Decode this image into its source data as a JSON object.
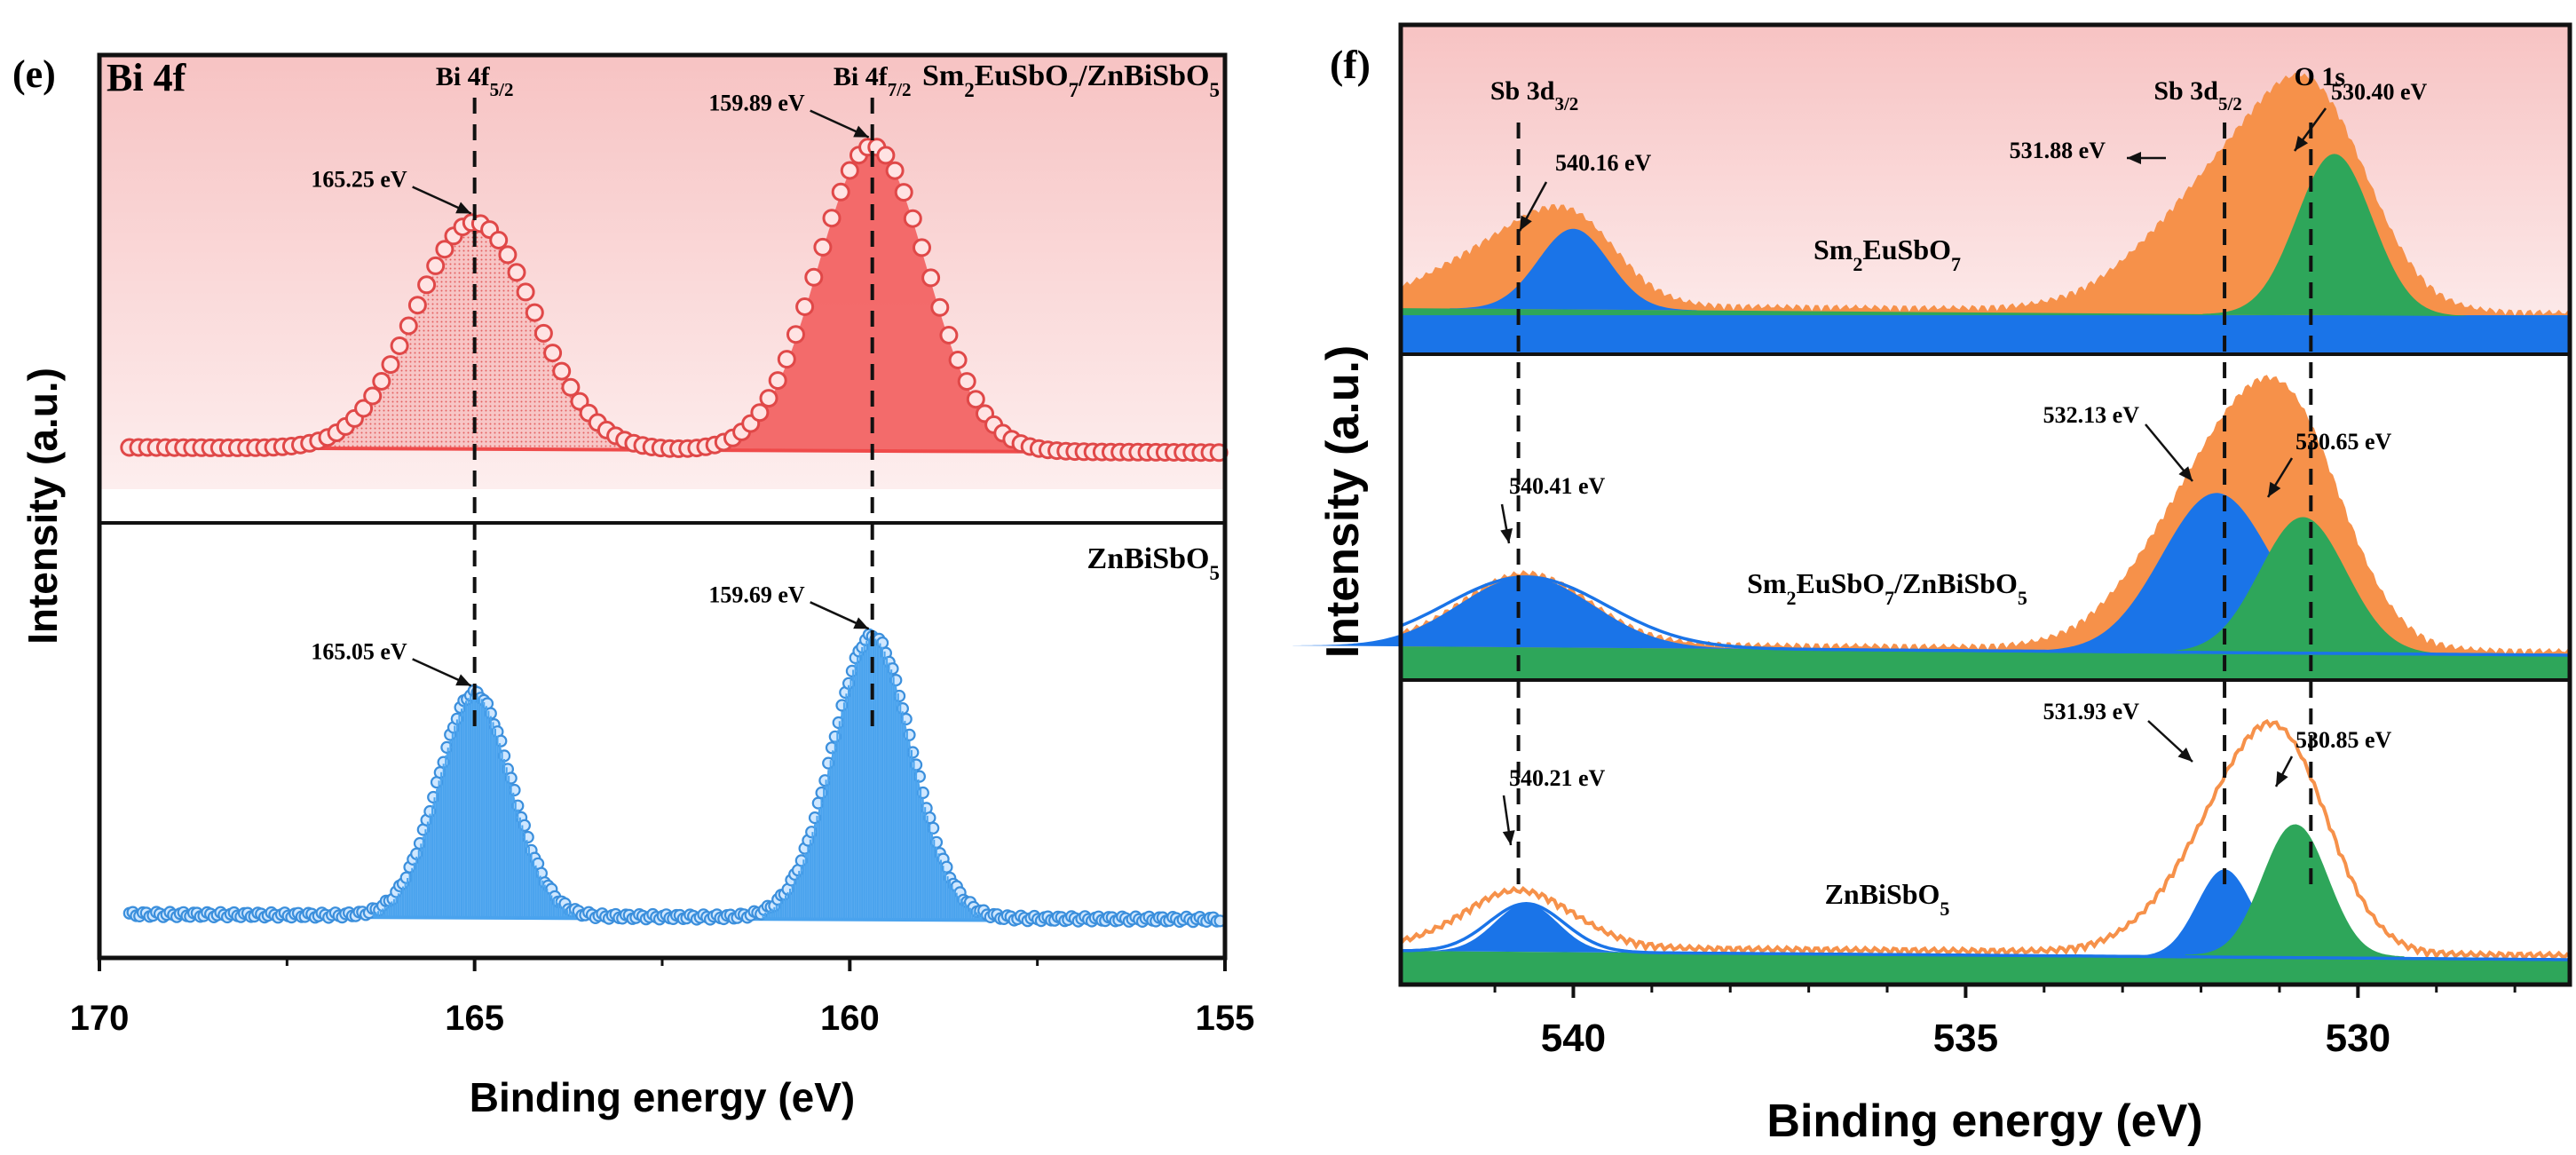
{
  "figure": {
    "panel_e_tag": "(e)",
    "panel_f_tag": "(f)"
  },
  "colors": {
    "red_line": "#ef4a4a",
    "red_fill": "#f26464",
    "red_region_fill": "#f5b7b7",
    "red_bg_top": "#f7c9c9",
    "red_bg_bottom": "#fdecec",
    "blue": "#4aa3ee",
    "blue_fill": "#1a74e8",
    "orange": "#f6914a",
    "green": "#2ea65a",
    "frame": "#111111"
  },
  "chart_data": [
    {
      "id": "e",
      "type": "line",
      "title": "Bi 4f",
      "xlabel": "Binding energy (eV)",
      "ylabel": "Intensity (a.u.)",
      "xlim": [
        170,
        155
      ],
      "x_ticks": [
        170,
        165,
        160,
        155
      ],
      "x_tick_labels": [
        "170",
        "165",
        "160",
        "155"
      ],
      "grid": false,
      "subpanels": [
        {
          "name": "Sm2EuSbO7/ZnBiSbO5",
          "label_base": "Sm",
          "label_parts": [
            [
              "Sm",
              ""
            ],
            [
              "2",
              "sub"
            ],
            [
              "EuSbO",
              ""
            ],
            [
              "7",
              "sub"
            ],
            [
              "/ZnBiSbO",
              ""
            ],
            [
              "5",
              "sub"
            ]
          ],
          "baseline": 0.08,
          "peaks": [
            {
              "center": 165.0,
              "height": 0.58,
              "sigma": 0.78,
              "label": "165.25 eV"
            },
            {
              "center": 159.7,
              "height": 0.78,
              "sigma": 0.72,
              "label": "159.89 eV"
            }
          ]
        },
        {
          "name": "ZnBiSbO5",
          "label_parts": [
            [
              "ZnBiSbO",
              ""
            ],
            [
              "5",
              "sub"
            ]
          ],
          "baseline": 0.08,
          "peaks": [
            {
              "center": 165.0,
              "height": 0.57,
              "sigma": 0.48,
              "label": "165.05 eV"
            },
            {
              "center": 159.7,
              "height": 0.72,
              "sigma": 0.52,
              "label": "159.69 eV"
            }
          ]
        }
      ],
      "reference_lines": [
        {
          "x": 165.0,
          "label_main": "Bi 4f",
          "label_sub": "5/2"
        },
        {
          "x": 159.7,
          "label_main": "Bi 4f",
          "label_sub": "7/2"
        }
      ]
    },
    {
      "id": "f",
      "type": "area",
      "xlabel": "Binding energy (eV)",
      "ylabel": "Intensity (a.u.)",
      "xlim": [
        542.2,
        527.3
      ],
      "x_ticks": [
        540,
        535,
        530
      ],
      "x_tick_labels": [
        "540",
        "535",
        "530"
      ],
      "grid": false,
      "subpanels": [
        {
          "name": "Sm2EuSbO7",
          "label_parts": [
            [
              "Sm",
              ""
            ],
            [
              "2",
              "sub"
            ],
            [
              "EuSbO",
              ""
            ],
            [
              "7",
              "sub"
            ]
          ],
          "envelope": [
            {
              "center": 541.0,
              "height": 0.22,
              "sigma": 0.8
            },
            {
              "center": 540.0,
              "height": 0.3,
              "sigma": 0.6
            },
            {
              "center": 531.6,
              "height": 0.55,
              "sigma": 1.0
            },
            {
              "center": 530.5,
              "height": 0.65,
              "sigma": 0.7
            }
          ],
          "components": [
            {
              "series": "Sb 3d3/2",
              "center": 540.0,
              "height": 0.34,
              "sigma": 0.45,
              "color": "blue"
            },
            {
              "series": "O 1s",
              "center": 530.3,
              "height": 0.68,
              "sigma": 0.48,
              "color": "green"
            }
          ],
          "peak_labels": [
            "540.16 eV",
            "531.88 eV",
            "530.40 eV"
          ]
        },
        {
          "name": "Sm2EuSbO7/ZnBiSbO5",
          "label_parts": [
            [
              "Sm",
              ""
            ],
            [
              "2",
              "sub"
            ],
            [
              "EuSbO",
              ""
            ],
            [
              "7",
              "sub"
            ],
            [
              "/ZnBiSbO",
              ""
            ],
            [
              "5",
              "sub"
            ]
          ],
          "envelope": [
            {
              "center": 540.6,
              "height": 0.3,
              "sigma": 0.8
            },
            {
              "center": 531.8,
              "height": 0.7,
              "sigma": 0.9
            },
            {
              "center": 530.8,
              "height": 0.7,
              "sigma": 0.7
            }
          ],
          "components": [
            {
              "series": "Sb 3d3/2",
              "center": 540.6,
              "height": 0.3,
              "sigma": 0.85,
              "color": "blue"
            },
            {
              "series": "Sb 3d5/2",
              "center": 531.8,
              "height": 0.68,
              "sigma": 0.7,
              "color": "blue"
            },
            {
              "series": "O 1s",
              "center": 530.7,
              "height": 0.58,
              "sigma": 0.55,
              "color": "green"
            }
          ],
          "peak_labels": [
            "540.41 eV",
            "532.13 eV",
            "530.65 eV"
          ]
        },
        {
          "name": "ZnBiSbO5",
          "label_parts": [
            [
              "ZnBiSbO",
              ""
            ],
            [
              "5",
              "sub"
            ]
          ],
          "envelope": [
            {
              "center": 540.7,
              "height": 0.26,
              "sigma": 0.7
            },
            {
              "center": 531.5,
              "height": 0.6,
              "sigma": 0.8
            },
            {
              "center": 530.9,
              "height": 0.55,
              "sigma": 0.6
            }
          ],
          "components": [
            {
              "series": "Sb 3d3/2",
              "center": 540.6,
              "height": 0.22,
              "sigma": 0.4,
              "color": "blue"
            },
            {
              "series": "Sb 3d5/2",
              "center": 531.7,
              "height": 0.4,
              "sigma": 0.35,
              "color": "blue"
            },
            {
              "series": "O 1s",
              "center": 530.8,
              "height": 0.6,
              "sigma": 0.4,
              "color": "green"
            }
          ],
          "peak_labels": [
            "540.21 eV",
            "531.93 eV",
            "530.85 eV"
          ]
        }
      ],
      "reference_lines": [
        {
          "x": 540.7,
          "label_main": "Sb 3d",
          "label_sub": "3/2"
        },
        {
          "x": 531.7,
          "label_main": "Sb 3d",
          "label_sub": "5/2"
        },
        {
          "x": 530.6,
          "label_main": "O 1s",
          "label_sub": ""
        }
      ]
    }
  ]
}
